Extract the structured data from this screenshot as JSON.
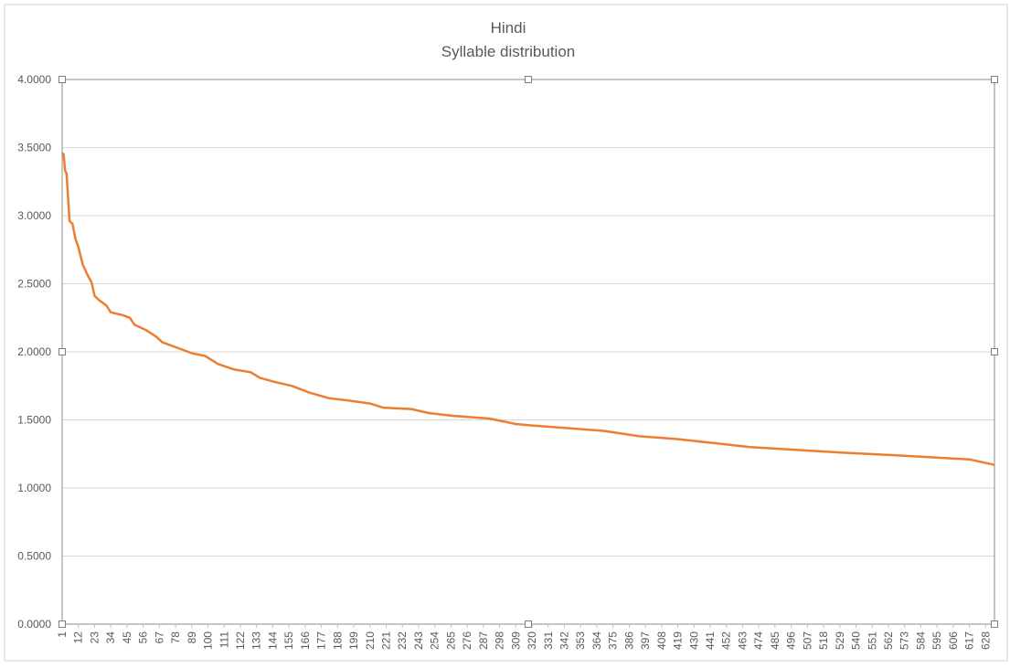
{
  "chart_data": {
    "type": "line",
    "title": "Hindi",
    "subtitle": "Syllable distribution",
    "x": [
      1,
      2,
      3,
      4,
      6,
      8,
      10,
      12,
      15,
      18,
      21,
      23,
      26,
      31,
      34,
      42,
      47,
      50,
      58,
      65,
      69,
      79,
      89,
      98,
      107,
      118,
      129,
      135,
      145,
      157,
      169,
      182,
      197,
      210,
      219,
      238,
      250,
      266,
      291,
      309,
      319,
      343,
      368,
      393,
      418,
      443,
      468,
      499,
      530,
      567,
      617,
      634
    ],
    "series": [
      {
        "name": "Hindi",
        "color": "#ed7d31",
        "values": [
          3.46,
          3.45,
          3.33,
          3.31,
          2.96,
          2.94,
          2.83,
          2.77,
          2.64,
          2.57,
          2.51,
          2.41,
          2.38,
          2.34,
          2.29,
          2.27,
          2.25,
          2.2,
          2.16,
          2.11,
          2.07,
          2.03,
          1.99,
          1.97,
          1.91,
          1.87,
          1.85,
          1.81,
          1.78,
          1.75,
          1.7,
          1.66,
          1.64,
          1.62,
          1.59,
          1.58,
          1.55,
          1.53,
          1.51,
          1.47,
          1.46,
          1.44,
          1.42,
          1.38,
          1.36,
          1.33,
          1.3,
          1.28,
          1.26,
          1.24,
          1.21,
          1.17
        ]
      }
    ],
    "xlim": [
      1,
      634
    ],
    "xticks": [
      1,
      12,
      23,
      34,
      45,
      56,
      67,
      78,
      89,
      100,
      111,
      122,
      133,
      144,
      155,
      166,
      177,
      188,
      199,
      210,
      221,
      232,
      243,
      254,
      265,
      276,
      287,
      298,
      309,
      320,
      331,
      342,
      353,
      364,
      375,
      386,
      397,
      408,
      419,
      430,
      441,
      452,
      463,
      474,
      485,
      496,
      507,
      518,
      529,
      540,
      551,
      562,
      573,
      584,
      595,
      606,
      617,
      628
    ],
    "ylim": [
      0,
      4
    ],
    "yticks": [
      {
        "value": 0,
        "label": "0.0000"
      },
      {
        "value": 0.5,
        "label": "0.5000"
      },
      {
        "value": 1,
        "label": "1.0000"
      },
      {
        "value": 1.5,
        "label": "1.5000"
      },
      {
        "value": 2,
        "label": "2.0000"
      },
      {
        "value": 2.5,
        "label": "2.5000"
      },
      {
        "value": 3,
        "label": "3.0000"
      },
      {
        "value": 3.5,
        "label": "3.5000"
      },
      {
        "value": 4,
        "label": "4.0000"
      }
    ],
    "grid": true
  }
}
